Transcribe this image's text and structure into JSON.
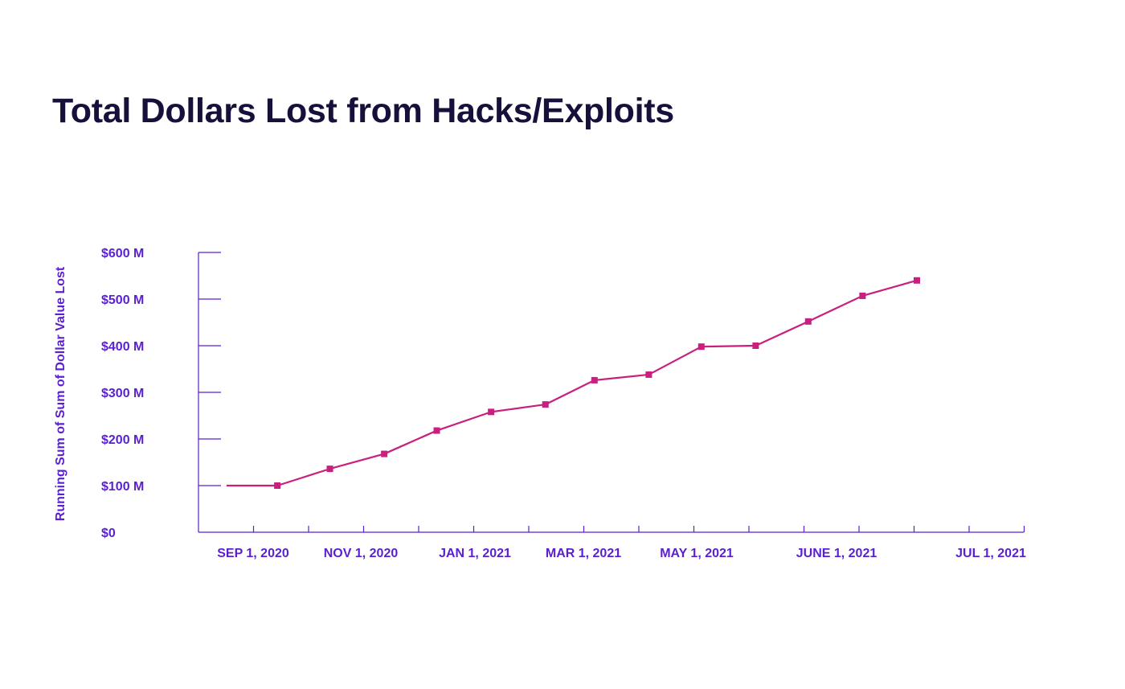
{
  "colors": {
    "title": "#16103a",
    "axis": "#5a1fd1",
    "series": "#c91f7e"
  },
  "chart_data": {
    "type": "line",
    "title": "Total Dollars Lost from Hacks/Exploits",
    "ylabel": "Running Sum of Sum of Dollar Value Lost",
    "xlabel": "",
    "x_tick_labels": [
      "SEP 1, 2020",
      "NOV 1, 2020",
      "JAN 1, 2021",
      "MAR 1, 2021",
      "MAY 1, 2021",
      "JUNE 1, 2021",
      "JUL 1, 2021"
    ],
    "y_tick_labels": [
      "$0",
      "$100 M",
      "$200 M",
      "$300 M",
      "$400 M",
      "$500 M",
      "$600 M"
    ],
    "ylim": [
      0,
      600
    ],
    "y_unit": "$M",
    "grid": false,
    "series": [
      {
        "x": [
          "2020-08-17",
          "2020-09-15",
          "2020-10-15",
          "2020-11-15",
          "2020-12-15",
          "2021-01-15",
          "2021-02-15",
          "2021-03-15",
          "2021-04-15",
          "2021-05-15",
          "2021-06-15",
          "2021-07-15",
          "2021-08-15",
          "2021-09-15"
        ],
        "values": [
          100,
          100,
          136,
          168,
          218,
          258,
          274,
          326,
          338,
          398,
          400,
          452,
          507,
          540
        ]
      }
    ]
  }
}
